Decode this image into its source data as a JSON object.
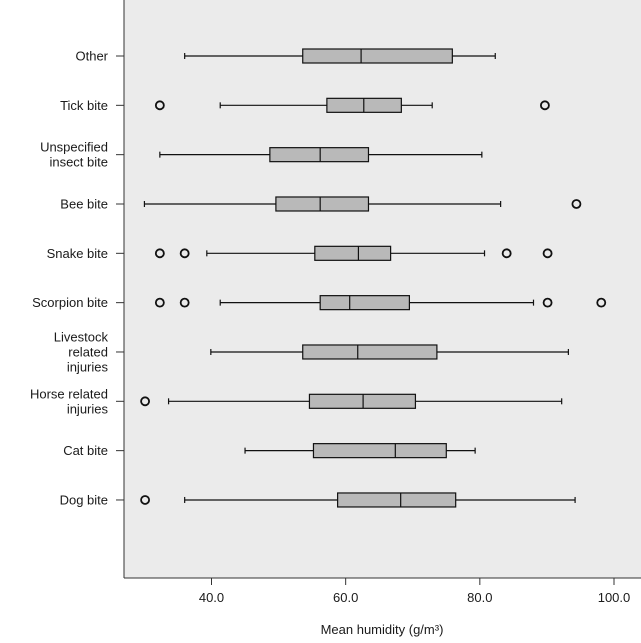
{
  "chart_data": {
    "type": "boxplot",
    "orientation": "horizontal",
    "xlabel": "Mean humidity (g/m³)",
    "xlim": [
      26,
      104
    ],
    "xticks": [
      40.0,
      60.0,
      80.0,
      100.0
    ],
    "xtick_labels": [
      "40.0",
      "60.0",
      "80.0",
      "100.0"
    ],
    "grid": false,
    "plot_background": "#ebebeb",
    "box_fill": "#b9b9b9",
    "categories": [
      {
        "label": [
          "Other"
        ],
        "whisker_low": 36.0,
        "q1": 53.6,
        "median": 62.3,
        "q3": 75.9,
        "whisker_high": 82.3,
        "outliers": []
      },
      {
        "label": [
          "Tick bite"
        ],
        "whisker_low": 41.3,
        "q1": 57.2,
        "median": 62.7,
        "q3": 68.3,
        "whisker_high": 72.9,
        "outliers": [
          32.3,
          89.7
        ]
      },
      {
        "label": [
          "Unspecified",
          "insect bite"
        ],
        "whisker_low": 32.3,
        "q1": 48.7,
        "median": 56.2,
        "q3": 63.4,
        "whisker_high": 80.3,
        "outliers": []
      },
      {
        "label": [
          "Bee bite"
        ],
        "whisker_low": 30.0,
        "q1": 49.6,
        "median": 56.2,
        "q3": 63.4,
        "whisker_high": 83.1,
        "outliers": [
          94.4
        ]
      },
      {
        "label": [
          "Snake bite"
        ],
        "whisker_low": 39.3,
        "q1": 55.4,
        "median": 61.9,
        "q3": 66.7,
        "whisker_high": 80.7,
        "outliers": [
          32.3,
          36.0,
          84.0,
          90.1
        ]
      },
      {
        "label": [
          "Scorpion bite"
        ],
        "whisker_low": 41.3,
        "q1": 56.2,
        "median": 60.6,
        "q3": 69.5,
        "whisker_high": 88.0,
        "outliers": [
          32.3,
          36.0,
          90.1,
          98.1
        ]
      },
      {
        "label": [
          "Livestock",
          "related",
          "injuries"
        ],
        "whisker_low": 39.9,
        "q1": 53.6,
        "median": 61.8,
        "q3": 73.6,
        "whisker_high": 93.2,
        "outliers": []
      },
      {
        "label": [
          "Horse related",
          "injuries"
        ],
        "whisker_low": 33.6,
        "q1": 54.6,
        "median": 62.6,
        "q3": 70.4,
        "whisker_high": 92.2,
        "outliers": [
          30.1
        ]
      },
      {
        "label": [
          "Cat bite"
        ],
        "whisker_low": 45.0,
        "q1": 55.2,
        "median": 67.4,
        "q3": 75.0,
        "whisker_high": 79.3,
        "outliers": []
      },
      {
        "label": [
          "Dog bite"
        ],
        "whisker_low": 36.0,
        "q1": 58.8,
        "median": 68.2,
        "q3": 76.4,
        "whisker_high": 94.2,
        "outliers": [
          30.1
        ]
      }
    ]
  }
}
